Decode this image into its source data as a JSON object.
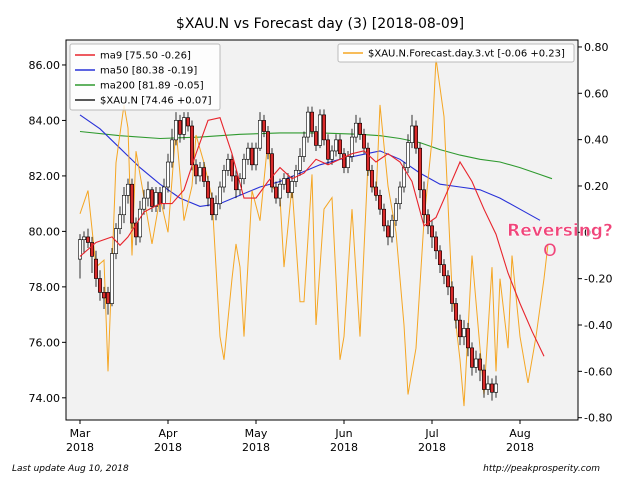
{
  "chart_data": {
    "type": "candlestick+line",
    "title": "$XAU.N vs Forecast day (3)  [2018-08-09]",
    "x_ticks": [
      "Mar\n2018",
      "Apr\n2018",
      "May\n2018",
      "Jun\n2018",
      "Jul\n2018",
      "Aug\n2018"
    ],
    "y_left": {
      "ylim": [
        73.2,
        86.9
      ],
      "ticks": [
        "74.00",
        "76.00",
        "78.00",
        "80.00",
        "82.00",
        "84.00",
        "86.00"
      ]
    },
    "y_right": {
      "ylim": [
        -0.81,
        0.83
      ],
      "ticks": [
        "-0.80",
        "-0.60",
        "-0.40",
        "-0.20",
        "0",
        "0.20",
        "0.40",
        "0.60",
        "0.80"
      ]
    },
    "legend_left": [
      {
        "label": "ma9 [75.50 -0.26]",
        "color": "#e8242c"
      },
      {
        "label": "ma50 [80.38 -0.19]",
        "color": "#2831d8"
      },
      {
        "label": "ma200 [81.89 -0.05]",
        "color": "#2f9a2f"
      },
      {
        "label": "$XAU.N [74.46 +0.07]",
        "color": "#222222"
      }
    ],
    "legend_right": [
      {
        "label": "$XAU.N.Forecast.day.3.vt [-0.06 +0.23]",
        "color": "#f5a623"
      }
    ],
    "annotation": {
      "text": "Reversing?",
      "marker": "O",
      "color": "#f0457a"
    },
    "colors": {
      "up": "#ffffff",
      "down": "#d92b2b",
      "forecast": "#f5a623",
      "ma9": "#e8242c",
      "ma50": "#2831d8",
      "ma200": "#2f9a2f"
    },
    "series": {
      "ma200": [
        [
          0,
          83.6
        ],
        [
          10,
          83.45
        ],
        [
          20,
          83.35
        ],
        [
          30,
          83.4
        ],
        [
          40,
          83.5
        ],
        [
          50,
          83.55
        ],
        [
          60,
          83.55
        ],
        [
          70,
          83.5
        ],
        [
          75,
          83.45
        ],
        [
          80,
          83.35
        ],
        [
          85,
          83.2
        ],
        [
          90,
          82.95
        ],
        [
          95,
          82.75
        ],
        [
          100,
          82.6
        ],
        [
          105,
          82.5
        ],
        [
          110,
          82.3
        ],
        [
          115,
          82.05
        ],
        [
          118,
          81.9
        ]
      ],
      "ma50": [
        [
          0,
          84.2
        ],
        [
          5,
          83.7
        ],
        [
          10,
          83.0
        ],
        [
          15,
          82.3
        ],
        [
          20,
          81.7
        ],
        [
          25,
          81.2
        ],
        [
          30,
          80.9
        ],
        [
          35,
          81.0
        ],
        [
          40,
          81.3
        ],
        [
          45,
          81.6
        ],
        [
          50,
          81.8
        ],
        [
          55,
          82.1
        ],
        [
          60,
          82.4
        ],
        [
          65,
          82.6
        ],
        [
          70,
          82.75
        ],
        [
          75,
          82.9
        ],
        [
          80,
          82.6
        ],
        [
          85,
          82.1
        ],
        [
          90,
          81.7
        ],
        [
          95,
          81.6
        ],
        [
          100,
          81.5
        ],
        [
          105,
          81.2
        ],
        [
          110,
          80.8
        ],
        [
          115,
          80.4
        ]
      ],
      "ma9": [
        [
          0,
          79.1
        ],
        [
          4,
          79.6
        ],
        [
          8,
          79.8
        ],
        [
          10,
          79.5
        ],
        [
          12,
          79.8
        ],
        [
          16,
          80.7
        ],
        [
          20,
          81.0
        ],
        [
          23,
          81.0
        ],
        [
          26,
          81.5
        ],
        [
          29,
          82.8
        ],
        [
          32,
          84.0
        ],
        [
          35,
          84.1
        ],
        [
          38,
          82.8
        ],
        [
          41,
          81.2
        ],
        [
          44,
          81.2
        ],
        [
          47,
          81.8
        ],
        [
          50,
          82.3
        ],
        [
          53,
          81.9
        ],
        [
          56,
          82.1
        ],
        [
          59,
          82.6
        ],
        [
          62,
          82.4
        ],
        [
          65,
          82.6
        ],
        [
          68,
          82.8
        ],
        [
          71,
          82.9
        ],
        [
          74,
          82.5
        ],
        [
          77,
          82.8
        ],
        [
          80,
          82.5
        ],
        [
          83,
          81.8
        ],
        [
          86,
          80.2
        ],
        [
          89,
          80.5
        ],
        [
          92,
          81.5
        ],
        [
          95,
          82.5
        ],
        [
          98,
          81.8
        ],
        [
          101,
          80.8
        ],
        [
          104,
          79.9
        ],
        [
          107,
          78.5
        ],
        [
          110,
          77.4
        ],
        [
          113,
          76.4
        ],
        [
          116,
          75.5
        ]
      ],
      "forecast": [
        [
          0,
          0.08
        ],
        [
          2,
          0.18
        ],
        [
          4,
          -0.15
        ],
        [
          6,
          -0.12
        ],
        [
          7,
          -0.6
        ],
        [
          9,
          0.3
        ],
        [
          11,
          0.55
        ],
        [
          12,
          0.45
        ],
        [
          13,
          -0.1
        ],
        [
          14,
          0.35
        ],
        [
          16,
          0.15
        ],
        [
          18,
          -0.05
        ],
        [
          20,
          0.15
        ],
        [
          22,
          0.0
        ],
        [
          24,
          0.45
        ],
        [
          26,
          0.05
        ],
        [
          28,
          0.2
        ],
        [
          29,
          0.42
        ],
        [
          31,
          0.3
        ],
        [
          33,
          0.15
        ],
        [
          35,
          -0.45
        ],
        [
          36,
          -0.55
        ],
        [
          38,
          -0.2
        ],
        [
          39,
          -0.05
        ],
        [
          40,
          -0.15
        ],
        [
          41,
          -0.45
        ],
        [
          43,
          0.18
        ],
        [
          45,
          0.05
        ],
        [
          47,
          0.4
        ],
        [
          48,
          0.2
        ],
        [
          50,
          0.15
        ],
        [
          51,
          -0.15
        ],
        [
          53,
          0.2
        ],
        [
          55,
          -0.3
        ],
        [
          56,
          -0.3
        ],
        [
          58,
          0.25
        ],
        [
          59,
          -0.4
        ],
        [
          61,
          0.1
        ],
        [
          63,
          0.15
        ],
        [
          65,
          -0.55
        ],
        [
          66,
          -0.45
        ],
        [
          68,
          0.1
        ],
        [
          70,
          -0.45
        ],
        [
          72,
          0.3
        ],
        [
          74,
          0.15
        ],
        [
          75,
          0.55
        ],
        [
          77,
          0.2
        ],
        [
          79,
          0.0
        ],
        [
          81,
          -0.4
        ],
        [
          82,
          -0.7
        ],
        [
          84,
          -0.5
        ],
        [
          86,
          0.05
        ],
        [
          88,
          0.4
        ],
        [
          89,
          0.75
        ],
        [
          91,
          0.5
        ],
        [
          93,
          -0.25
        ],
        [
          95,
          -0.55
        ],
        [
          96,
          -0.75
        ],
        [
          98,
          -0.1
        ],
        [
          99,
          -0.3
        ],
        [
          101,
          -0.7
        ],
        [
          103,
          -0.15
        ],
        [
          104,
          -0.6
        ],
        [
          105,
          -0.2
        ],
        [
          107,
          -0.5
        ],
        [
          108,
          -0.1
        ],
        [
          110,
          -0.45
        ],
        [
          112,
          -0.65
        ],
        [
          114,
          -0.45
        ],
        [
          116,
          -0.2
        ],
        [
          117,
          -0.05
        ]
      ],
      "candles": [
        [
          0,
          79.0,
          79.7,
          78.3,
          79.9
        ],
        [
          1,
          79.7,
          79.8,
          79.2,
          80.0
        ],
        [
          2,
          79.8,
          79.6,
          79.4,
          80.1
        ],
        [
          3,
          79.6,
          79.1,
          78.5,
          79.8
        ],
        [
          4,
          79.0,
          78.3,
          78.0,
          79.3
        ],
        [
          5,
          78.3,
          77.8,
          77.5,
          78.6
        ],
        [
          6,
          77.8,
          77.6,
          77.2,
          78.0
        ],
        [
          7,
          77.8,
          77.4,
          77.0,
          78.0
        ],
        [
          8,
          77.4,
          79.2,
          77.3,
          79.4
        ],
        [
          9,
          79.2,
          80.1,
          79.0,
          80.3
        ],
        [
          10,
          80.1,
          80.6,
          79.9,
          80.9
        ],
        [
          11,
          80.6,
          81.3,
          80.3,
          81.6
        ],
        [
          12,
          81.3,
          81.7,
          81.0,
          81.9
        ],
        [
          13,
          81.7,
          80.3,
          80.1,
          81.9
        ],
        [
          14,
          80.3,
          79.8,
          79.5,
          80.5
        ],
        [
          15,
          79.8,
          80.8,
          79.6,
          81.1
        ],
        [
          16,
          80.8,
          81.2,
          80.6,
          81.5
        ],
        [
          17,
          81.2,
          81.5,
          80.9,
          81.8
        ],
        [
          18,
          81.5,
          80.9,
          80.7,
          81.6
        ],
        [
          19,
          80.9,
          81.4,
          80.7,
          81.6
        ],
        [
          20,
          81.4,
          81.0,
          80.7,
          81.6
        ],
        [
          21,
          81.0,
          81.6,
          80.8,
          81.9
        ],
        [
          22,
          81.6,
          82.5,
          81.4,
          82.8
        ],
        [
          23,
          82.5,
          83.3,
          82.3,
          83.7
        ],
        [
          24,
          83.3,
          84.0,
          83.1,
          84.3
        ],
        [
          25,
          84.0,
          83.5,
          83.2,
          84.2
        ],
        [
          26,
          83.5,
          84.1,
          83.3,
          84.3
        ],
        [
          27,
          84.1,
          83.8,
          83.6,
          84.3
        ],
        [
          28,
          83.8,
          82.4,
          82.2,
          84.0
        ],
        [
          29,
          82.4,
          82.0,
          81.7,
          82.6
        ],
        [
          30,
          82.0,
          82.3,
          81.8,
          82.5
        ],
        [
          31,
          82.3,
          81.8,
          81.6,
          82.5
        ],
        [
          32,
          81.8,
          81.2,
          80.9,
          82.0
        ],
        [
          33,
          81.2,
          80.6,
          80.4,
          81.4
        ],
        [
          34,
          80.6,
          81.0,
          80.4,
          81.3
        ],
        [
          35,
          81.0,
          81.6,
          80.8,
          81.8
        ],
        [
          36,
          81.6,
          82.2,
          81.4,
          82.4
        ],
        [
          37,
          82.2,
          82.6,
          82.0,
          82.8
        ],
        [
          38,
          82.6,
          82.0,
          81.8,
          82.8
        ],
        [
          39,
          82.0,
          81.5,
          81.2,
          82.2
        ],
        [
          40,
          81.5,
          81.9,
          81.3,
          82.1
        ],
        [
          41,
          81.9,
          82.6,
          81.7,
          82.8
        ],
        [
          42,
          82.6,
          83.0,
          82.4,
          83.2
        ],
        [
          43,
          83.0,
          82.4,
          82.2,
          83.2
        ],
        [
          44,
          82.4,
          83.0,
          82.2,
          83.2
        ],
        [
          45,
          83.0,
          84.0,
          82.9,
          84.3
        ],
        [
          46,
          84.0,
          83.6,
          83.4,
          84.2
        ],
        [
          47,
          83.6,
          82.8,
          82.6,
          83.8
        ],
        [
          48,
          82.8,
          81.6,
          81.4,
          83.0
        ],
        [
          49,
          81.6,
          81.2,
          81.0,
          81.8
        ],
        [
          50,
          81.2,
          81.7,
          80.9,
          81.9
        ],
        [
          51,
          81.7,
          81.9,
          81.5,
          82.1
        ],
        [
          52,
          81.9,
          81.4,
          81.2,
          82.1
        ],
        [
          53,
          81.4,
          81.8,
          81.2,
          82.0
        ],
        [
          54,
          81.8,
          82.2,
          81.6,
          82.4
        ],
        [
          55,
          82.2,
          82.7,
          82.0,
          83.0
        ],
        [
          56,
          82.7,
          83.4,
          82.5,
          83.6
        ],
        [
          57,
          83.4,
          84.3,
          83.2,
          84.5
        ],
        [
          58,
          84.3,
          83.6,
          83.4,
          84.5
        ],
        [
          59,
          83.6,
          83.1,
          82.9,
          83.8
        ],
        [
          60,
          83.1,
          84.2,
          83.0,
          84.4
        ],
        [
          61,
          84.2,
          83.3,
          83.1,
          84.4
        ],
        [
          62,
          83.3,
          82.6,
          82.4,
          83.5
        ],
        [
          63,
          82.6,
          82.9,
          82.4,
          83.1
        ],
        [
          64,
          82.9,
          83.3,
          82.7,
          83.5
        ],
        [
          65,
          83.3,
          82.8,
          82.6,
          83.5
        ],
        [
          66,
          82.8,
          82.3,
          82.1,
          83.0
        ],
        [
          67,
          82.3,
          82.7,
          82.1,
          82.9
        ],
        [
          68,
          82.7,
          83.4,
          82.5,
          83.7
        ],
        [
          69,
          83.4,
          83.9,
          83.2,
          84.2
        ],
        [
          70,
          83.9,
          83.5,
          83.3,
          84.1
        ],
        [
          71,
          83.5,
          83.0,
          82.8,
          83.7
        ],
        [
          72,
          83.0,
          82.2,
          82.0,
          83.2
        ],
        [
          73,
          82.2,
          81.6,
          81.4,
          82.4
        ],
        [
          74,
          81.6,
          81.3,
          81.1,
          81.8
        ],
        [
          75,
          81.3,
          80.8,
          80.6,
          81.5
        ],
        [
          76,
          80.8,
          80.2,
          80.0,
          81.0
        ],
        [
          77,
          80.2,
          79.8,
          79.5,
          80.4
        ],
        [
          78,
          79.8,
          80.4,
          79.6,
          80.6
        ],
        [
          79,
          80.4,
          81.0,
          80.2,
          81.2
        ],
        [
          80,
          81.0,
          81.6,
          80.8,
          81.8
        ],
        [
          81,
          81.6,
          82.3,
          81.4,
          82.5
        ],
        [
          82,
          82.3,
          83.2,
          82.1,
          83.5
        ],
        [
          83,
          83.2,
          83.8,
          83.0,
          84.2
        ],
        [
          84,
          83.8,
          83.0,
          82.8,
          84.0
        ],
        [
          85,
          83.0,
          81.5,
          81.2,
          83.2
        ],
        [
          86,
          81.5,
          80.6,
          80.3,
          81.8
        ],
        [
          87,
          80.6,
          80.2,
          79.9,
          80.8
        ],
        [
          88,
          80.2,
          79.8,
          79.4,
          80.4
        ],
        [
          89,
          79.8,
          79.3,
          79.0,
          80.0
        ],
        [
          90,
          79.3,
          78.8,
          78.5,
          79.5
        ],
        [
          91,
          78.8,
          78.4,
          78.1,
          79.0
        ],
        [
          92,
          78.4,
          78.0,
          77.7,
          78.6
        ],
        [
          93,
          78.0,
          77.4,
          77.1,
          78.2
        ],
        [
          94,
          77.4,
          76.8,
          76.5,
          77.6
        ],
        [
          95,
          76.8,
          76.2,
          75.9,
          77.0
        ],
        [
          96,
          76.2,
          76.5,
          75.9,
          76.8
        ],
        [
          97,
          76.5,
          75.8,
          75.5,
          76.7
        ],
        [
          98,
          75.8,
          75.1,
          74.8,
          76.0
        ],
        [
          99,
          75.1,
          75.4,
          74.9,
          75.7
        ],
        [
          100,
          75.4,
          75.0,
          74.6,
          75.6
        ],
        [
          101,
          75.0,
          74.3,
          74.0,
          75.2
        ],
        [
          102,
          74.3,
          74.5,
          74.1,
          74.8
        ],
        [
          103,
          74.5,
          74.2,
          73.9,
          74.7
        ],
        [
          104,
          74.2,
          74.5,
          74.0,
          74.8
        ]
      ]
    }
  },
  "footer": {
    "left": "Last update Aug 10, 2018",
    "right": "http://peakprosperity.com"
  }
}
